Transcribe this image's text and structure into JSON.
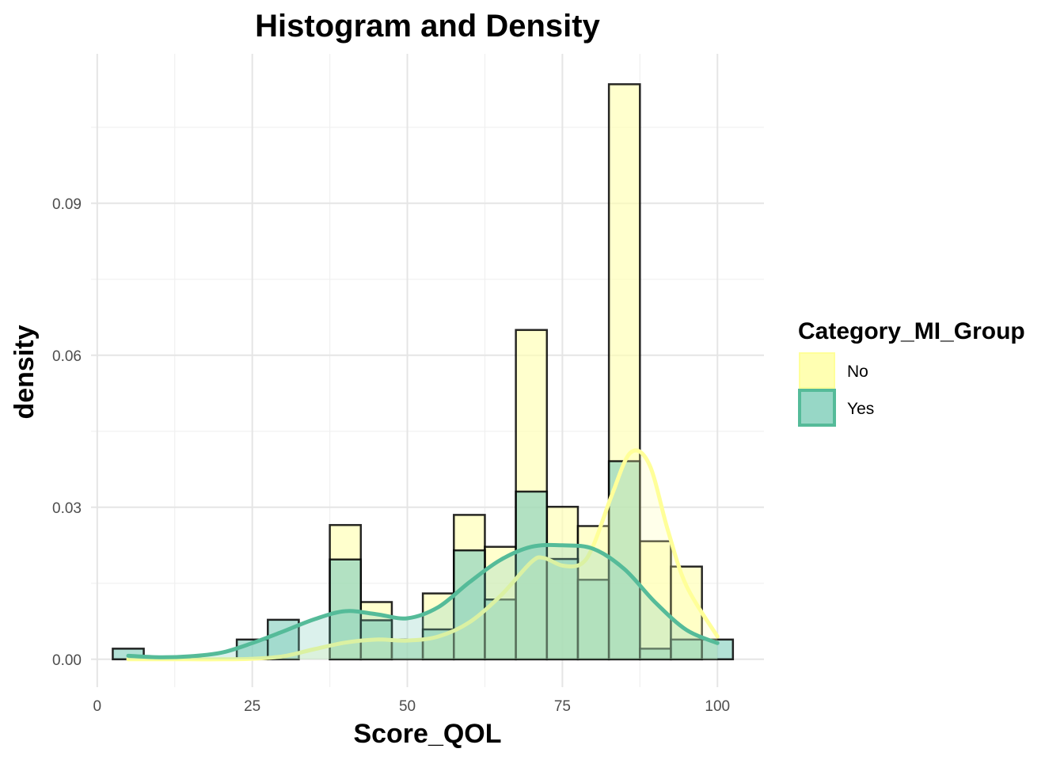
{
  "chart_data": {
    "type": "bar",
    "title": "Histogram and Density",
    "xlabel": "Score_QOL",
    "ylabel": "density",
    "xlim": [
      -1,
      107.5
    ],
    "ylim": [
      -0.0055,
      0.1195
    ],
    "x_ticks": [
      0,
      25,
      50,
      75,
      100
    ],
    "x_tick_labels": [
      "0",
      "25",
      "50",
      "75",
      "100"
    ],
    "y_ticks": [
      0.0,
      0.03,
      0.06,
      0.09
    ],
    "y_tick_labels": [
      "0.00",
      "0.03",
      "0.06",
      "0.09"
    ],
    "grid": true,
    "bin_width": 5,
    "bin_centers": [
      5,
      10,
      15,
      20,
      25,
      30,
      35,
      40,
      45,
      50,
      55,
      60,
      65,
      70,
      75,
      80,
      85,
      90,
      95,
      100
    ],
    "legend": {
      "title": "Category_MI_Group",
      "position": "right"
    },
    "series": [
      {
        "name": "No",
        "fill": "#ffffb2",
        "line_color": "#ffff99",
        "histogram": [
          0,
          0,
          0,
          0,
          0,
          0,
          0,
          0.0265,
          0.0113,
          0.0,
          0.013,
          0.0285,
          0.0222,
          0.065,
          0.0301,
          0.0263,
          0.1135,
          0.0233,
          0.0183,
          0.0
        ],
        "density_x": [
          5,
          10,
          15,
          20,
          25,
          30,
          35,
          40,
          45,
          50,
          55,
          60,
          65,
          70,
          72,
          75,
          78,
          80,
          83,
          86,
          89,
          92,
          95,
          100
        ],
        "density_y": [
          0.0,
          0.0,
          0.0,
          0.0,
          0.0001,
          0.0006,
          0.002,
          0.0033,
          0.0039,
          0.0037,
          0.0045,
          0.0073,
          0.0125,
          0.0192,
          0.02,
          0.0185,
          0.0188,
          0.0225,
          0.0325,
          0.0408,
          0.0385,
          0.0255,
          0.0145,
          0.0045
        ]
      },
      {
        "name": "Yes",
        "fill": "#7fcdbb",
        "line_color": "#55bb99",
        "histogram": [
          0.0021,
          0,
          0,
          0,
          0.0039,
          0.0078,
          0,
          0.0197,
          0.0077,
          0.0039,
          0.0059,
          0.0215,
          0.0118,
          0.0331,
          0.0198,
          0.0157,
          0.0391,
          0.0021,
          0.0039,
          0.0039
        ],
        "density_x": [
          5,
          10,
          15,
          20,
          25,
          30,
          35,
          40,
          45,
          50,
          55,
          60,
          65,
          70,
          75,
          80,
          85,
          90,
          95,
          100
        ],
        "density_y": [
          0.0007,
          0.0004,
          0.0006,
          0.0013,
          0.0032,
          0.0055,
          0.0079,
          0.0095,
          0.0089,
          0.0081,
          0.0103,
          0.0152,
          0.0196,
          0.0222,
          0.0225,
          0.0218,
          0.0178,
          0.0112,
          0.0058,
          0.0032
        ]
      }
    ]
  }
}
